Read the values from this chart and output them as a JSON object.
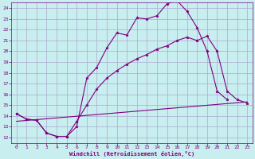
{
  "xlabel": "Windchill (Refroidissement éolien,°C)",
  "bg_color": "#c8eef0",
  "line_color": "#800080",
  "grid_color": "#aaaacc",
  "xlim": [
    -0.5,
    23.5
  ],
  "ylim": [
    11.5,
    24.5
  ],
  "xticks": [
    0,
    1,
    2,
    3,
    4,
    5,
    6,
    7,
    8,
    9,
    10,
    11,
    12,
    13,
    14,
    15,
    16,
    17,
    18,
    19,
    20,
    21,
    22,
    23
  ],
  "yticks": [
    12,
    13,
    14,
    15,
    16,
    17,
    18,
    19,
    20,
    21,
    22,
    23,
    24
  ],
  "series1_x": [
    0,
    1,
    2,
    3,
    4,
    5,
    6,
    7,
    8,
    9,
    10,
    11,
    12,
    13,
    14,
    15,
    16,
    17,
    18,
    19,
    20,
    21
  ],
  "series1_y": [
    14.2,
    13.7,
    13.6,
    12.4,
    12.1,
    12.1,
    13.0,
    17.5,
    18.5,
    20.3,
    21.7,
    21.5,
    23.1,
    23.0,
    23.3,
    24.4,
    24.7,
    23.7,
    22.2,
    20.0,
    16.3,
    15.5
  ],
  "series2_x": [
    0,
    1,
    2,
    3,
    4,
    5,
    6,
    7,
    8,
    9,
    10,
    11,
    12,
    13,
    14,
    15,
    16,
    17,
    18,
    19,
    20,
    21,
    22,
    23
  ],
  "series2_y": [
    14.2,
    13.7,
    13.6,
    12.4,
    12.1,
    12.1,
    13.5,
    15.0,
    16.5,
    17.5,
    18.2,
    18.8,
    19.3,
    19.7,
    20.2,
    20.5,
    21.0,
    21.3,
    21.0,
    21.4,
    20.0,
    16.3,
    15.5,
    15.2
  ],
  "series3_x": [
    0,
    23
  ],
  "series3_y": [
    13.5,
    15.3
  ],
  "figsize": [
    3.2,
    2.0
  ],
  "dpi": 100
}
